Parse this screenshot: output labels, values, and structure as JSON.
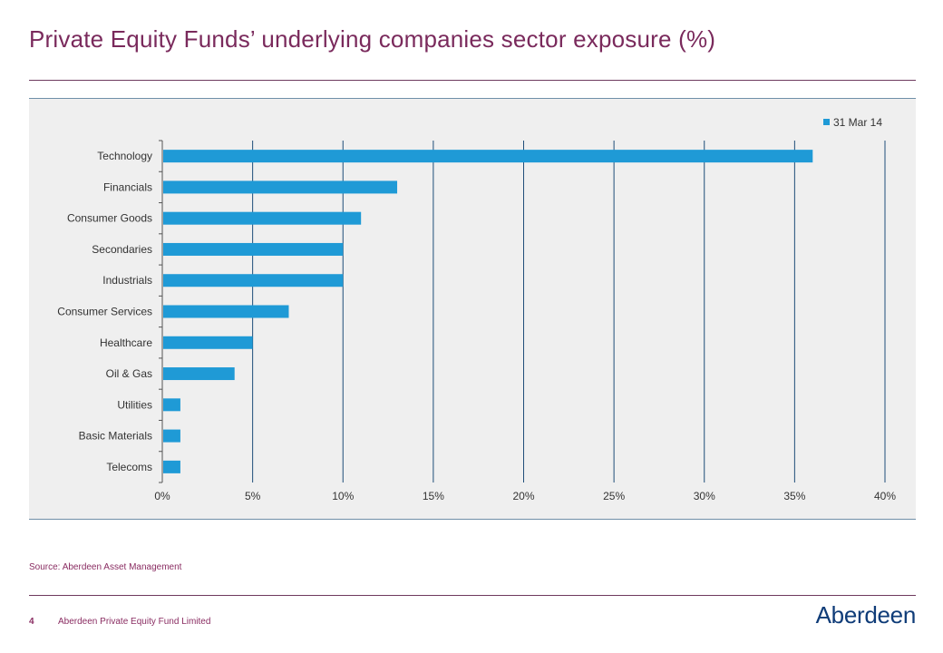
{
  "header": {
    "title": "Private Equity Funds’ underlying companies sector exposure (%)"
  },
  "chart_data": {
    "type": "bar",
    "orientation": "horizontal",
    "title": "",
    "xlabel": "",
    "ylabel": "",
    "categories": [
      "Technology",
      "Financials",
      "Consumer Goods",
      "Secondaries",
      "Industrials",
      "Consumer Services",
      "Healthcare",
      "Oil & Gas",
      "Utilities",
      "Basic Materials",
      "Telecoms"
    ],
    "series": [
      {
        "name": "31 Mar 14",
        "values": [
          36,
          13,
          11,
          10,
          10,
          7,
          5,
          4,
          1,
          1,
          1
        ],
        "color": "#1f9ad6"
      }
    ],
    "xlim": [
      0,
      40
    ],
    "xticks": [
      0,
      5,
      10,
      15,
      20,
      25,
      30,
      35,
      40
    ],
    "tick_suffix": "%",
    "grid": "vertical",
    "legend_position": "top-right"
  },
  "footer": {
    "source": "Source: Aberdeen Asset Management",
    "page_number": "4",
    "company": "Aberdeen Private Equity Fund Limited",
    "logo_text": "Aberdeen"
  },
  "colors": {
    "title": "#7a2a5c",
    "bar": "#1f9ad6",
    "grid": "#1f4e79",
    "footer": "#8a2d62",
    "logo": "#0f3c78"
  }
}
